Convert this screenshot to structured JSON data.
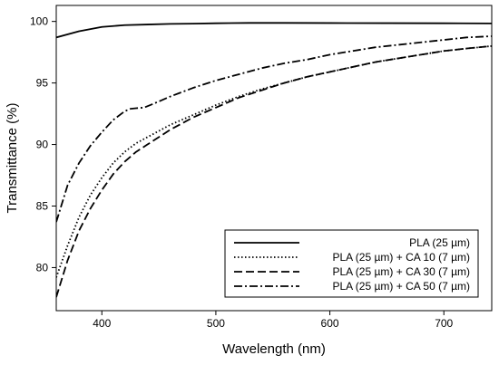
{
  "chart_data": {
    "type": "line",
    "title": "",
    "xlabel": "Wavelength (nm)",
    "ylabel": "Transmittance (%)",
    "xlim": [
      360,
      742
    ],
    "ylim": [
      76.5,
      101.3
    ],
    "xticks": [
      400,
      500,
      600,
      700
    ],
    "yticks": [
      80,
      85,
      90,
      95,
      100
    ],
    "grid": false,
    "legend_position": "bottom-right",
    "series": [
      {
        "name": "PLA (25 µm)",
        "line_style": "solid",
        "x": [
          360,
          380,
          400,
          420,
          440,
          460,
          480,
          500,
          530,
          560,
          600,
          650,
          700,
          742
        ],
        "y": [
          98.7,
          99.2,
          99.55,
          99.7,
          99.75,
          99.8,
          99.82,
          99.85,
          99.88,
          99.88,
          99.87,
          99.86,
          99.85,
          99.84
        ]
      },
      {
        "name": "PLA (25 µm) + CA 10 (7 µm)",
        "line_style": "dotted",
        "x": [
          360,
          370,
          380,
          390,
          400,
          410,
          420,
          430,
          440,
          460,
          480,
          500,
          520,
          540,
          560,
          580,
          600,
          620,
          640,
          660,
          680,
          700,
          720,
          742
        ],
        "y": [
          79.2,
          81.8,
          84.1,
          85.9,
          87.3,
          88.5,
          89.4,
          90.1,
          90.6,
          91.6,
          92.4,
          93.2,
          93.9,
          94.5,
          95.0,
          95.5,
          95.9,
          96.3,
          96.7,
          97.0,
          97.3,
          97.6,
          97.8,
          98.0
        ]
      },
      {
        "name": "PLA (25 µm) + CA 30 (7 µm)",
        "line_style": "dashed",
        "x": [
          360,
          370,
          380,
          390,
          400,
          410,
          420,
          430,
          440,
          460,
          480,
          500,
          520,
          540,
          560,
          580,
          600,
          620,
          640,
          660,
          680,
          700,
          720,
          742
        ],
        "y": [
          77.6,
          80.6,
          83.0,
          84.8,
          86.3,
          87.6,
          88.6,
          89.4,
          90.0,
          91.2,
          92.2,
          93.0,
          93.8,
          94.4,
          95.0,
          95.5,
          95.9,
          96.3,
          96.7,
          97.0,
          97.3,
          97.6,
          97.8,
          98.0
        ]
      },
      {
        "name": "PLA (25 µm) + CA 50 (7 µm)",
        "line_style": "dashdot",
        "x": [
          360,
          370,
          380,
          390,
          400,
          410,
          420,
          425,
          430,
          437,
          445,
          460,
          480,
          500,
          520,
          540,
          560,
          580,
          600,
          620,
          640,
          660,
          680,
          700,
          720,
          742
        ],
        "y": [
          83.7,
          86.7,
          88.5,
          89.9,
          91.0,
          92.0,
          92.7,
          92.9,
          92.95,
          93.0,
          93.3,
          93.9,
          94.6,
          95.2,
          95.7,
          96.2,
          96.6,
          96.9,
          97.3,
          97.6,
          97.9,
          98.1,
          98.3,
          98.5,
          98.7,
          98.8
        ]
      }
    ]
  }
}
